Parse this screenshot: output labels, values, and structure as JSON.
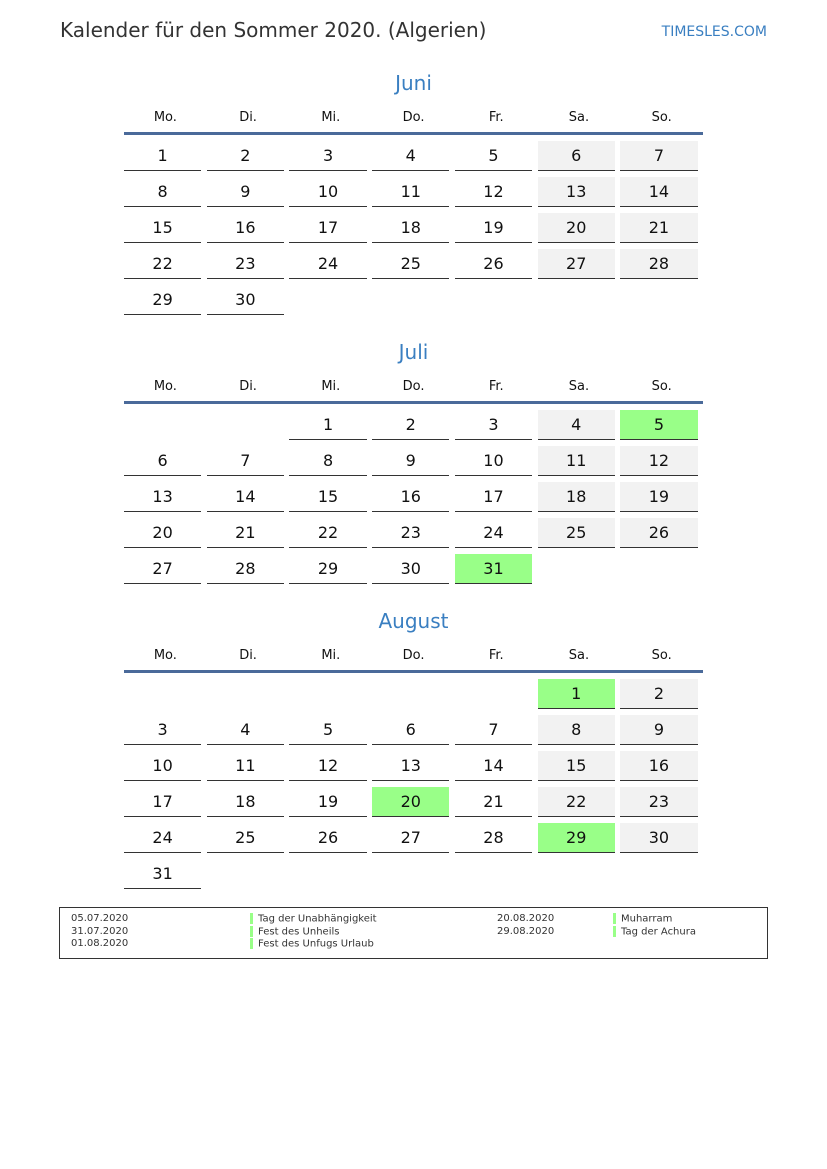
{
  "header": {
    "title": "Kalender für den Sommer 2020. (Algerien)",
    "brand": "TIMESLES.COM"
  },
  "weekdays": [
    "Mo.",
    "Di.",
    "Mi.",
    "Do.",
    "Fr.",
    "Sa.",
    "So."
  ],
  "colors": {
    "weekend": "#f2f2f2",
    "holiday": "#99ff88",
    "accent": "#3a7fc1"
  },
  "months": [
    {
      "name": "Juni",
      "offset": 0,
      "days": 30,
      "holidays": []
    },
    {
      "name": "Juli",
      "offset": 2,
      "days": 31,
      "holidays": [
        5,
        31
      ]
    },
    {
      "name": "August",
      "offset": 5,
      "days": 31,
      "holidays": [
        1,
        20,
        29
      ]
    }
  ],
  "legend": {
    "left": [
      {
        "date": "05.07.2020",
        "name": "Tag der Unabhängigkeit"
      },
      {
        "date": "31.07.2020",
        "name": "Fest des Unheils"
      },
      {
        "date": "01.08.2020",
        "name": "Fest des Unfugs Urlaub"
      }
    ],
    "right": [
      {
        "date": "20.08.2020",
        "name": "Muharram"
      },
      {
        "date": "29.08.2020",
        "name": "Tag der Achura"
      }
    ]
  }
}
